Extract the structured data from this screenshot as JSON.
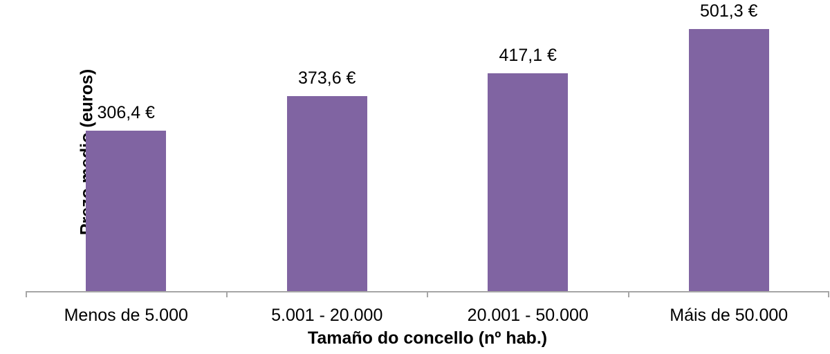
{
  "chart_data": {
    "type": "bar",
    "title": "",
    "categories": [
      "Menos de 5.000",
      "5.001 - 20.000",
      "20.001 - 50.000",
      "Máis de 50.000"
    ],
    "values": [
      306.4,
      373.6,
      417.1,
      501.3
    ],
    "value_labels": [
      "306,4 €",
      "373,6 €",
      "417,1 €",
      "501,3 €"
    ],
    "xlabel": "Tamaño do concello (nº hab.)",
    "ylabel": "Prezo medio (euros)",
    "ylim": [
      0,
      557
    ],
    "grid": false,
    "legend": false,
    "colors": {
      "bar_fill": "#8064A2",
      "axis_line": "#A6A6A6",
      "tick": "#A6A6A6",
      "text": "#000000",
      "background": "#FFFFFF"
    }
  }
}
